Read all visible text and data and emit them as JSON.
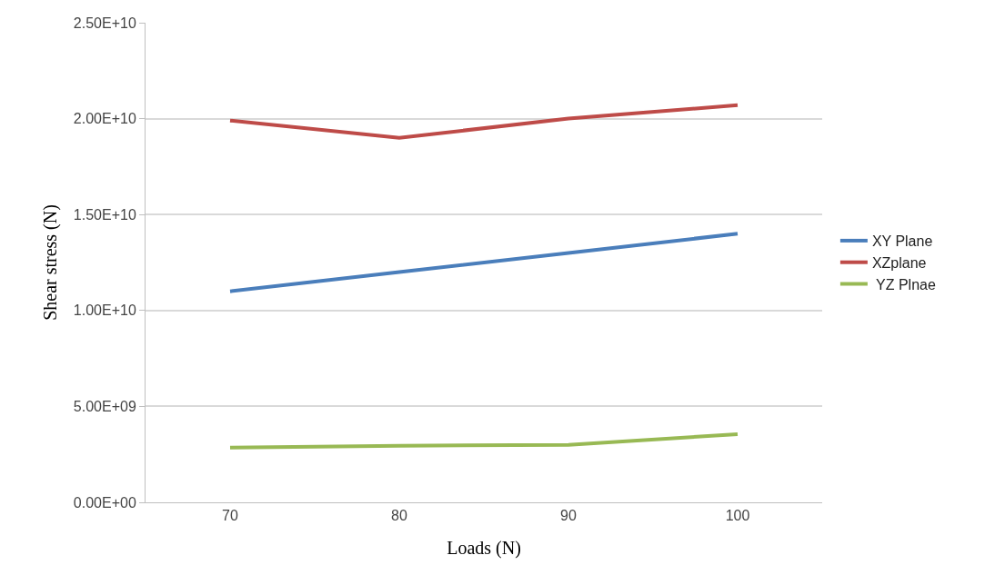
{
  "chart_data": {
    "type": "line",
    "xlabel": "Loads (N)",
    "ylabel": "Shear stress (N)",
    "categories": [
      "70",
      "80",
      "90",
      "100"
    ],
    "series": [
      {
        "name": "XY Plane",
        "color": "#4a7ebb",
        "values": [
          11000000000,
          12000000000,
          13000000000,
          14000000000
        ]
      },
      {
        "name": "XZplane",
        "color": "#be4b48",
        "values": [
          19900000000,
          19000000000,
          20000000000,
          20700000000
        ]
      },
      {
        "name": " YZ Plnae",
        "color": "#98b954",
        "values": [
          2850000000,
          2950000000,
          3000000000,
          3550000000
        ]
      }
    ],
    "ylim": [
      0,
      25000000000
    ],
    "yticks": [
      {
        "value": 0,
        "label": "0.00E+00"
      },
      {
        "value": 5000000000,
        "label": "5.00E+09"
      },
      {
        "value": 10000000000,
        "label": "1.00E+10"
      },
      {
        "value": 15000000000,
        "label": "1.50E+10"
      },
      {
        "value": 20000000000,
        "label": "2.00E+10"
      },
      {
        "value": 25000000000,
        "label": "2.50E+10"
      }
    ],
    "grid": "y",
    "legend": "right",
    "marker": "none",
    "line_style": "solid"
  }
}
